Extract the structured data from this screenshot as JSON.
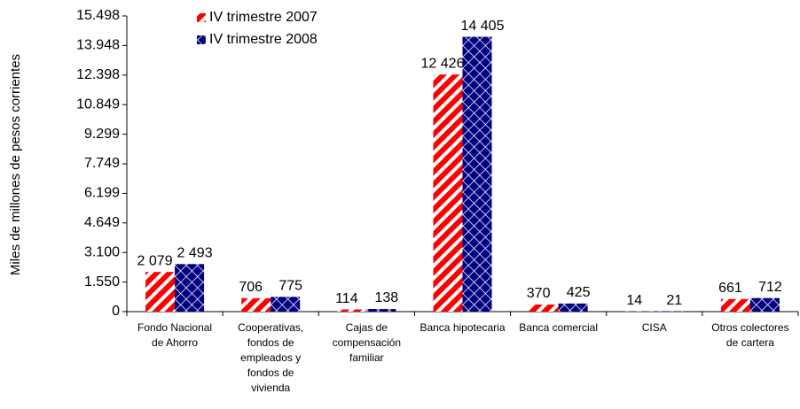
{
  "chart_data": {
    "type": "bar",
    "y_label": "Miles de millones de pesos corrientes",
    "categories": [
      "Fondo Nacional de Ahorro",
      "Cooperativas, fondos de empleados y fondos de vivienda",
      "Cajas de compensación familiar",
      "Banca hipotecaria",
      "Banca comercial",
      "CISA",
      "Otros colectores de cartera"
    ],
    "series": [
      {
        "name": "IV trimestre 2007",
        "color": "#ff0000",
        "values": [
          2079,
          706,
          114,
          12426,
          370,
          14,
          661
        ],
        "value_labels": [
          "2 079",
          "706",
          "114",
          "12 426",
          "370",
          "14",
          "661"
        ]
      },
      {
        "name": "IV trimestre 2008",
        "color": "#000080",
        "values": [
          2493,
          775,
          138,
          14405,
          425,
          21,
          712
        ],
        "value_labels": [
          "2 493",
          "775",
          "138",
          "14 405",
          "425",
          "21",
          "712"
        ]
      }
    ],
    "ylim": [
      0,
      15498
    ],
    "yticks": [
      0,
      {
        "value": 1550,
        "label": "1.550"
      },
      {
        "value": 3100,
        "label": "3.100"
      },
      {
        "value": 4649,
        "label": "4.649"
      },
      {
        "value": 6199,
        "label": "6.199"
      },
      {
        "value": 7749,
        "label": "7.749"
      },
      {
        "value": 9299,
        "label": "9.299"
      },
      {
        "value": 10849,
        "label": "10.849"
      },
      {
        "value": 12398,
        "label": "12.398"
      },
      {
        "value": 13948,
        "label": "13.948"
      },
      {
        "value": 15498,
        "label": "15.498"
      }
    ],
    "grid": false
  }
}
